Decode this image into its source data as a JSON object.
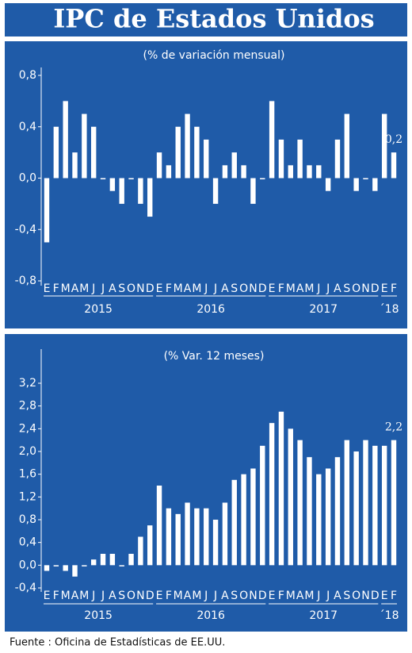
{
  "header": {
    "title": "IPC de Estados Unidos"
  },
  "footer": {
    "source": "Fuente : Oficina de Estadísticas de EE.UU."
  },
  "chart_data": [
    {
      "type": "bar",
      "title": "(% de variación mensual)",
      "color": "#ffffff",
      "categories": [
        "E",
        "F",
        "M",
        "A",
        "M",
        "J",
        "J",
        "A",
        "S",
        "O",
        "N",
        "D",
        "E",
        "F",
        "M",
        "A",
        "M",
        "J",
        "J",
        "A",
        "S",
        "O",
        "N",
        "D",
        "E",
        "F",
        "M",
        "A",
        "M",
        "J",
        "J",
        "A",
        "S",
        "O",
        "N",
        "D",
        "E",
        "F"
      ],
      "groups": [
        "2015",
        "2016",
        "2017",
        "´18"
      ],
      "values": [
        -0.5,
        0.4,
        0.6,
        0.2,
        0.5,
        0.4,
        0.0,
        -0.1,
        -0.2,
        0.0,
        -0.2,
        -0.3,
        0.2,
        0.1,
        0.4,
        0.5,
        0.4,
        0.3,
        -0.2,
        0.1,
        0.2,
        0.1,
        -0.2,
        0.0,
        0.6,
        0.3,
        0.1,
        0.3,
        0.1,
        0.1,
        -0.1,
        0.3,
        0.5,
        -0.1,
        0.0,
        -0.1,
        0.5,
        0.2
      ],
      "value_labels": [
        null,
        null,
        null,
        null,
        null,
        null,
        null,
        null,
        null,
        null,
        null,
        null,
        null,
        null,
        null,
        null,
        null,
        null,
        null,
        null,
        null,
        null,
        null,
        null,
        null,
        null,
        null,
        null,
        null,
        null,
        null,
        null,
        null,
        null,
        null,
        null,
        null,
        "0,2"
      ],
      "ylim": [
        -0.8,
        0.8
      ],
      "yticks": [
        {
          "value": 0.8,
          "label": "0,8"
        },
        {
          "value": 0.4,
          "label": "0,4"
        },
        {
          "value": 0.0,
          "label": "0,0"
        },
        {
          "value": -0.4,
          "label": "-0,4"
        },
        {
          "value": -0.8,
          "label": "-0,8"
        }
      ]
    },
    {
      "type": "bar",
      "title": "(% Var. 12 meses)",
      "color": "#ffffff",
      "categories": [
        "E",
        "F",
        "M",
        "A",
        "M",
        "J",
        "J",
        "A",
        "S",
        "O",
        "N",
        "D",
        "E",
        "F",
        "M",
        "A",
        "M",
        "J",
        "J",
        "A",
        "S",
        "O",
        "N",
        "D",
        "E",
        "F",
        "M",
        "A",
        "M",
        "J",
        "J",
        "A",
        "S",
        "O",
        "N",
        "D",
        "E",
        "F"
      ],
      "groups": [
        "2015",
        "2016",
        "2017",
        "´18"
      ],
      "values": [
        -0.1,
        0.0,
        -0.1,
        -0.2,
        0.0,
        0.1,
        0.2,
        0.2,
        0.0,
        0.2,
        0.5,
        0.7,
        1.4,
        1.0,
        0.9,
        1.1,
        1.0,
        1.0,
        0.8,
        1.1,
        1.5,
        1.6,
        1.7,
        2.1,
        2.5,
        2.7,
        2.4,
        2.2,
        1.9,
        1.6,
        1.7,
        1.9,
        2.2,
        2.0,
        2.2,
        2.1,
        2.1,
        2.2
      ],
      "value_labels": [
        null,
        null,
        null,
        null,
        null,
        null,
        null,
        null,
        null,
        null,
        null,
        null,
        null,
        null,
        null,
        null,
        null,
        null,
        null,
        null,
        null,
        null,
        null,
        null,
        null,
        null,
        null,
        null,
        null,
        null,
        null,
        null,
        null,
        null,
        null,
        null,
        null,
        "2,2"
      ],
      "ylim": [
        -0.4,
        3.2
      ],
      "yticks": [
        {
          "value": 3.2,
          "label": "3,2"
        },
        {
          "value": 2.8,
          "label": "2,8"
        },
        {
          "value": 2.4,
          "label": "2,4"
        },
        {
          "value": 2.0,
          "label": "2,0"
        },
        {
          "value": 1.6,
          "label": "1,6"
        },
        {
          "value": 1.2,
          "label": "1,2"
        },
        {
          "value": 0.8,
          "label": "0,8"
        },
        {
          "value": 0.4,
          "label": "0,4"
        },
        {
          "value": 0.0,
          "label": "0,0"
        },
        {
          "value": -0.4,
          "label": "-0,4"
        }
      ]
    }
  ]
}
